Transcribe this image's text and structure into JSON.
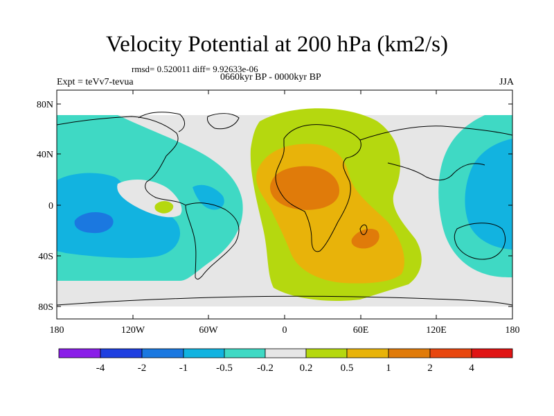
{
  "title": "Velocity Potential at 200 hPa (km2/s)",
  "stats": "rmsd= 0.520011  diff= 9.92633e-06",
  "expt": "Expt = teVv7-tevua",
  "period": "0660kyr BP - 0000kyr BP",
  "season": "JJA",
  "lat_labels": [
    "80N",
    "40N",
    "0",
    "40S",
    "80S"
  ],
  "lon_labels": [
    "180",
    "120W",
    "60W",
    "0",
    "60E",
    "120E",
    "180"
  ],
  "colorbar_labels": [
    "-4",
    "-2",
    "-1",
    "-0.5",
    "-0.2",
    "0.2",
    "0.5",
    "1",
    "2",
    "4"
  ],
  "colorbar_colors": [
    "#8a1ee8",
    "#1f3fe0",
    "#1b78e0",
    "#12b3e0",
    "#3fd9c4",
    "#e6e6e6",
    "#b5d80f",
    "#e8b30a",
    "#e07b0a",
    "#e8470f",
    "#e01414"
  ],
  "contour_colors": {
    "neg_0_2": "#3fd9c4",
    "neg_0_5": "#12b3e0",
    "neg_1": "#1b78e0",
    "pos_0_2": "#b5d80f",
    "pos_0_5": "#e8b30a",
    "pos_1": "#e07b0a",
    "background": "#e6e6e6"
  }
}
